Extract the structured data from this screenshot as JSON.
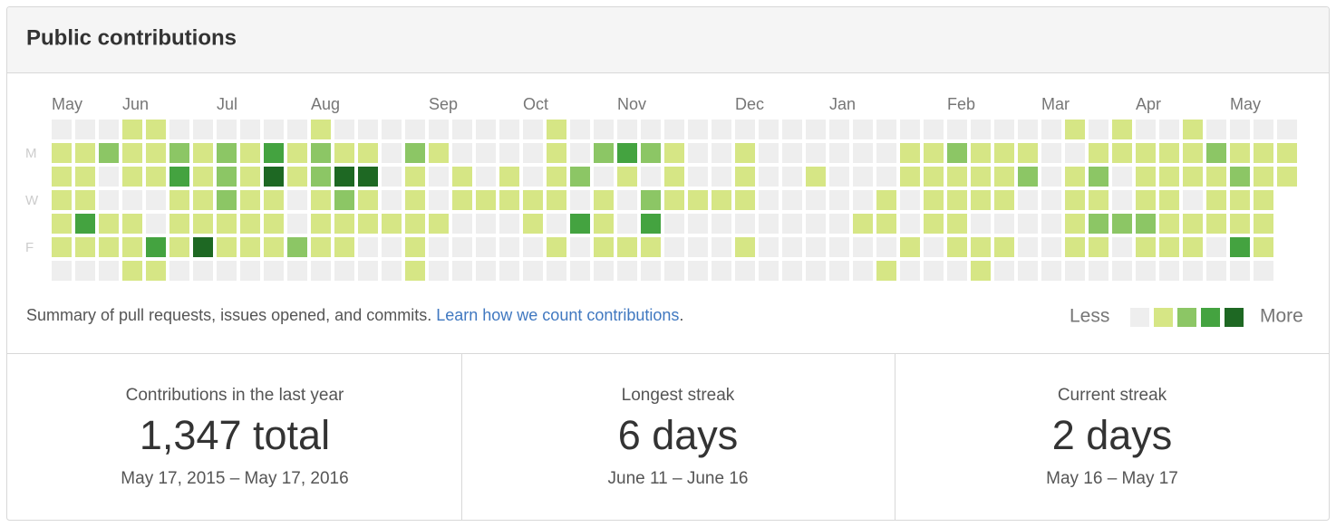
{
  "header": {
    "title": "Public contributions"
  },
  "calendar": {
    "day_labels": [
      {
        "label": "M",
        "day": 1
      },
      {
        "label": "W",
        "day": 3
      },
      {
        "label": "F",
        "day": 5
      }
    ],
    "months": [
      {
        "label": "May",
        "week": 0
      },
      {
        "label": "Jun",
        "week": 3
      },
      {
        "label": "Jul",
        "week": 7
      },
      {
        "label": "Aug",
        "week": 11
      },
      {
        "label": "Sep",
        "week": 16
      },
      {
        "label": "Oct",
        "week": 20
      },
      {
        "label": "Nov",
        "week": 24
      },
      {
        "label": "Dec",
        "week": 29
      },
      {
        "label": "Jan",
        "week": 33
      },
      {
        "label": "Feb",
        "week": 38
      },
      {
        "label": "Mar",
        "week": 42
      },
      {
        "label": "Apr",
        "week": 46
      },
      {
        "label": "May",
        "week": 50
      }
    ],
    "colors": [
      "#eeeeee",
      "#d6e685",
      "#8cc665",
      "#44a340",
      "#1e6823"
    ],
    "weeks": [
      [
        0,
        1,
        1,
        1,
        1,
        1,
        0
      ],
      [
        0,
        1,
        1,
        1,
        3,
        1,
        0
      ],
      [
        0,
        2,
        0,
        0,
        1,
        1,
        0
      ],
      [
        1,
        1,
        1,
        0,
        1,
        1,
        1
      ],
      [
        1,
        1,
        1,
        0,
        0,
        3,
        1
      ],
      [
        0,
        2,
        3,
        1,
        1,
        1,
        0
      ],
      [
        0,
        1,
        1,
        1,
        1,
        4,
        0
      ],
      [
        0,
        2,
        2,
        2,
        1,
        1,
        0
      ],
      [
        0,
        1,
        1,
        1,
        1,
        1,
        0
      ],
      [
        0,
        3,
        4,
        1,
        1,
        1,
        0
      ],
      [
        0,
        1,
        1,
        0,
        0,
        2,
        0
      ],
      [
        1,
        2,
        2,
        1,
        1,
        1,
        0
      ],
      [
        0,
        1,
        4,
        2,
        1,
        1,
        0
      ],
      [
        0,
        1,
        4,
        1,
        1,
        0,
        0
      ],
      [
        0,
        0,
        0,
        0,
        1,
        0,
        0
      ],
      [
        0,
        2,
        1,
        1,
        1,
        1,
        1
      ],
      [
        0,
        1,
        0,
        0,
        1,
        0,
        0
      ],
      [
        0,
        0,
        1,
        1,
        0,
        0,
        0
      ],
      [
        0,
        0,
        0,
        1,
        0,
        0,
        0
      ],
      [
        0,
        0,
        1,
        1,
        0,
        0,
        0
      ],
      [
        0,
        0,
        0,
        1,
        1,
        0,
        0
      ],
      [
        1,
        1,
        1,
        1,
        0,
        1,
        0
      ],
      [
        0,
        0,
        2,
        0,
        3,
        0,
        0
      ],
      [
        0,
        2,
        0,
        1,
        1,
        1,
        0
      ],
      [
        0,
        3,
        1,
        0,
        0,
        1,
        0
      ],
      [
        0,
        2,
        0,
        2,
        3,
        1,
        0
      ],
      [
        0,
        1,
        1,
        1,
        0,
        0,
        0
      ],
      [
        0,
        0,
        0,
        1,
        0,
        0,
        0
      ],
      [
        0,
        0,
        0,
        1,
        0,
        0,
        0
      ],
      [
        0,
        1,
        1,
        1,
        0,
        1,
        0
      ],
      [
        0,
        0,
        0,
        0,
        0,
        0,
        0
      ],
      [
        0,
        0,
        0,
        0,
        0,
        0,
        0
      ],
      [
        0,
        0,
        1,
        0,
        0,
        0,
        0
      ],
      [
        0,
        0,
        0,
        0,
        0,
        0,
        0
      ],
      [
        0,
        0,
        0,
        0,
        1,
        0,
        0
      ],
      [
        0,
        0,
        0,
        1,
        1,
        0,
        1
      ],
      [
        0,
        1,
        1,
        0,
        0,
        1,
        0
      ],
      [
        0,
        1,
        1,
        1,
        1,
        0,
        0
      ],
      [
        0,
        2,
        1,
        1,
        1,
        1,
        0
      ],
      [
        0,
        1,
        1,
        1,
        0,
        1,
        1
      ],
      [
        0,
        1,
        1,
        1,
        0,
        1,
        0
      ],
      [
        0,
        1,
        2,
        0,
        0,
        0,
        0
      ],
      [
        0,
        0,
        0,
        0,
        0,
        0,
        0
      ],
      [
        1,
        0,
        1,
        1,
        1,
        1,
        0
      ],
      [
        0,
        1,
        2,
        1,
        2,
        1,
        0
      ],
      [
        1,
        1,
        0,
        0,
        2,
        0,
        0
      ],
      [
        0,
        1,
        1,
        1,
        2,
        1,
        0
      ],
      [
        0,
        1,
        1,
        1,
        1,
        1,
        0
      ],
      [
        1,
        1,
        1,
        0,
        1,
        1,
        0
      ],
      [
        0,
        2,
        1,
        1,
        1,
        0,
        0
      ],
      [
        0,
        1,
        2,
        1,
        1,
        3,
        0
      ],
      [
        0,
        1,
        1,
        1,
        1,
        1,
        0
      ],
      [
        0,
        1,
        1
      ]
    ],
    "summary": "Summary of pull requests, issues opened, and commits.",
    "link": "Learn how we count contributions",
    "link_end": ".",
    "legend": {
      "less": "Less",
      "more": "More",
      "levels": [
        0,
        1,
        2,
        3,
        4
      ]
    }
  },
  "stats": [
    {
      "label": "Contributions in the last year",
      "value": "1,347 total",
      "range": "May 17, 2015 – May 17, 2016"
    },
    {
      "label": "Longest streak",
      "value": "6 days",
      "range": "June 11 – June 16"
    },
    {
      "label": "Current streak",
      "value": "2 days",
      "range": "May 16 – May 17"
    }
  ]
}
